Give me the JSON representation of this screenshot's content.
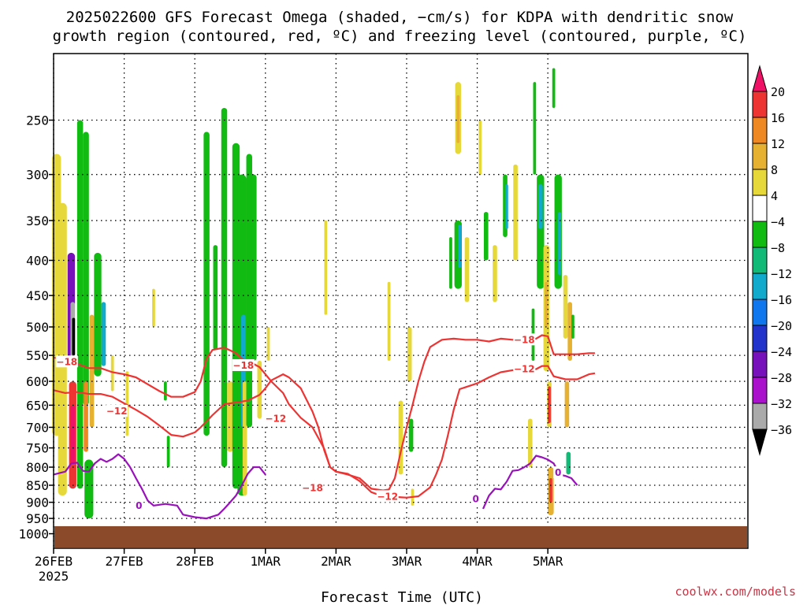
{
  "title_line1": "2025022600 GFS Forecast Omega (shaded, −cm/s) for KDPA with dendritic snow",
  "title_line2": "growth region (contoured, red, ºC) and freezing level (contoured, purple, ºC)",
  "xlabel": "Forecast Time (UTC)",
  "credit": "coolwx.com/models",
  "chart_data": {
    "type": "heatmap",
    "y_axis": {
      "scale": "log-pressure",
      "range_hPa": [
        1050,
        200
      ],
      "ticks": [
        250,
        300,
        350,
        400,
        450,
        500,
        550,
        600,
        650,
        700,
        750,
        800,
        850,
        900,
        950,
        1000
      ]
    },
    "x_axis": {
      "range_hours": [
        0,
        236
      ],
      "ticks": [
        {
          "hour": 0,
          "label": "26FEB",
          "sub": "2025"
        },
        {
          "hour": 24,
          "label": "27FEB"
        },
        {
          "hour": 48,
          "label": "28FEB"
        },
        {
          "hour": 72,
          "label": "1MAR"
        },
        {
          "hour": 96,
          "label": "2MAR"
        },
        {
          "hour": 120,
          "label": "3MAR"
        },
        {
          "hour": 144,
          "label": "4MAR"
        },
        {
          "hour": 168,
          "label": "5MAR"
        }
      ]
    },
    "grid": "dotted",
    "colorbar": {
      "labels": [
        "20",
        "16",
        "12",
        "8",
        "4",
        "−4",
        "−8",
        "−12",
        "−16",
        "−20",
        "−24",
        "−28",
        "−32",
        "−36"
      ],
      "colors": [
        "#ee1166",
        "#ee3333",
        "#ee8822",
        "#e6b030",
        "#e6d83a",
        "#ffffff",
        "#11bb11",
        "#11bb77",
        "#11aacc",
        "#1177ee",
        "#2233cc",
        "#7711bb",
        "#aa11cc",
        "#aaaaaa",
        "#000000"
      ]
    },
    "contour_colors": {
      "dendritic": "#ee3333",
      "freezing": "#9911bb",
      "ground": "#8b4a2a"
    },
    "contours": {
      "minus18_upper": [
        [
          0,
          554
        ],
        [
          4,
          558
        ],
        [
          8,
          566
        ],
        [
          12,
          574
        ],
        [
          16,
          574
        ],
        [
          20,
          582
        ],
        [
          24,
          586
        ],
        [
          28,
          592
        ],
        [
          32,
          606
        ],
        [
          36,
          620
        ],
        [
          40,
          632
        ],
        [
          44,
          632
        ],
        [
          48,
          622
        ],
        [
          50,
          600
        ],
        [
          52,
          556
        ],
        [
          54,
          540
        ],
        [
          58,
          536
        ],
        [
          62,
          546
        ],
        [
          64,
          556
        ],
        [
          68,
          566
        ],
        [
          70,
          572
        ],
        [
          74,
          600
        ],
        [
          78,
          624
        ],
        [
          80,
          648
        ],
        [
          84,
          678
        ],
        [
          88,
          700
        ],
        [
          92,
          752
        ],
        [
          94,
          800
        ],
        [
          96,
          812
        ],
        [
          100,
          820
        ],
        [
          104,
          830
        ],
        [
          108,
          860
        ],
        [
          112,
          865
        ],
        [
          114,
          862
        ],
        [
          116,
          830
        ],
        [
          118,
          760
        ],
        [
          120,
          700
        ],
        [
          122,
          650
        ],
        [
          124,
          600
        ],
        [
          126,
          562
        ],
        [
          128,
          535
        ],
        [
          132,
          522
        ],
        [
          136,
          520
        ],
        [
          140,
          522
        ],
        [
          144,
          522
        ],
        [
          148,
          525
        ],
        [
          152,
          520
        ],
        [
          156,
          522
        ],
        [
          160,
          522
        ],
        [
          164,
          520
        ],
        [
          166,
          514
        ],
        [
          168,
          516
        ],
        [
          170,
          548
        ],
        [
          174,
          548
        ],
        [
          178,
          548
        ],
        [
          182,
          546
        ],
        [
          184,
          546
        ]
      ],
      "minus12_lower": [
        [
          0,
          618
        ],
        [
          4,
          624
        ],
        [
          8,
          622
        ],
        [
          12,
          626
        ],
        [
          16,
          626
        ],
        [
          20,
          632
        ],
        [
          24,
          646
        ],
        [
          28,
          660
        ],
        [
          32,
          676
        ],
        [
          36,
          696
        ],
        [
          40,
          718
        ],
        [
          44,
          722
        ],
        [
          48,
          712
        ],
        [
          50,
          700
        ],
        [
          52,
          686
        ],
        [
          54,
          672
        ],
        [
          58,
          648
        ],
        [
          62,
          644
        ],
        [
          66,
          640
        ],
        [
          70,
          628
        ],
        [
          72,
          614
        ],
        [
          74,
          598
        ],
        [
          78,
          586
        ],
        [
          80,
          592
        ],
        [
          84,
          614
        ],
        [
          88,
          664
        ],
        [
          90,
          700
        ],
        [
          92,
          756
        ],
        [
          94,
          800
        ],
        [
          96,
          812
        ],
        [
          100,
          818
        ],
        [
          104,
          838
        ],
        [
          108,
          870
        ],
        [
          112,
          882
        ],
        [
          116,
          884
        ],
        [
          120,
          886
        ],
        [
          124,
          882
        ],
        [
          128,
          856
        ],
        [
          130,
          820
        ],
        [
          132,
          780
        ],
        [
          134,
          720
        ],
        [
          136,
          660
        ],
        [
          138,
          616
        ],
        [
          140,
          612
        ],
        [
          144,
          604
        ],
        [
          148,
          592
        ],
        [
          152,
          582
        ],
        [
          156,
          578
        ],
        [
          160,
          574
        ],
        [
          164,
          576
        ],
        [
          166,
          570
        ],
        [
          168,
          570
        ],
        [
          170,
          590
        ],
        [
          174,
          596
        ],
        [
          178,
          596
        ],
        [
          182,
          586
        ],
        [
          184,
          584
        ]
      ],
      "freezing_left": [
        [
          0,
          820
        ],
        [
          4,
          812
        ],
        [
          6,
          790
        ],
        [
          8,
          788
        ],
        [
          10,
          810
        ],
        [
          12,
          812
        ],
        [
          14,
          790
        ],
        [
          16,
          778
        ],
        [
          18,
          786
        ],
        [
          20,
          778
        ],
        [
          22,
          766
        ],
        [
          24,
          778
        ],
        [
          26,
          800
        ],
        [
          28,
          830
        ],
        [
          30,
          860
        ],
        [
          32,
          895
        ],
        [
          34,
          910
        ],
        [
          38,
          905
        ],
        [
          42,
          910
        ],
        [
          44,
          938
        ],
        [
          48,
          946
        ],
        [
          52,
          950
        ],
        [
          56,
          938
        ],
        [
          58,
          920
        ],
        [
          60,
          900
        ],
        [
          62,
          880
        ],
        [
          64,
          850
        ],
        [
          66,
          818
        ],
        [
          68,
          800
        ],
        [
          70,
          800
        ],
        [
          72,
          820
        ]
      ],
      "freezing_right": [
        [
          146,
          920
        ],
        [
          148,
          880
        ],
        [
          150,
          860
        ],
        [
          152,
          862
        ],
        [
          154,
          840
        ],
        [
          156,
          810
        ],
        [
          158,
          808
        ],
        [
          160,
          800
        ],
        [
          162,
          790
        ],
        [
          164,
          770
        ],
        [
          166,
          774
        ],
        [
          168,
          780
        ],
        [
          170,
          790
        ],
        [
          172,
          820
        ],
        [
          174,
          824
        ],
        [
          176,
          830
        ],
        [
          178,
          850
        ]
      ]
    },
    "contour_labels": [
      {
        "text": "−18",
        "hour": 4.5,
        "p": 562,
        "kind": "dendritic"
      },
      {
        "text": "−12",
        "hour": 21.5,
        "p": 663,
        "kind": "dendritic"
      },
      {
        "text": "−18",
        "hour": 64.5,
        "p": 569,
        "kind": "dendritic"
      },
      {
        "text": "−12",
        "hour": 75.5,
        "p": 680,
        "kind": "dendritic"
      },
      {
        "text": "−18",
        "hour": 88,
        "p": 858,
        "kind": "dendritic"
      },
      {
        "text": "−12",
        "hour": 113.5,
        "p": 883,
        "kind": "dendritic"
      },
      {
        "text": "−18",
        "hour": 160,
        "p": 522,
        "kind": "dendritic"
      },
      {
        "text": "−12",
        "hour": 160,
        "p": 576,
        "kind": "dendritic"
      },
      {
        "text": "0",
        "hour": 29,
        "p": 910,
        "kind": "freezing"
      },
      {
        "text": "0",
        "hour": 143.5,
        "p": 890,
        "kind": "freezing"
      },
      {
        "text": "0",
        "hour": 171.5,
        "p": 815,
        "kind": "freezing"
      }
    ],
    "shaded_regions": [
      {
        "hour": 1,
        "p_top": 280,
        "p_bot": 720,
        "w": 3,
        "color": "#e6d83a"
      },
      {
        "hour": 3,
        "p_top": 330,
        "p_bot": 880,
        "w": 3,
        "color": "#e6d83a"
      },
      {
        "hour": 6,
        "p_top": 390,
        "p_bot": 560,
        "w": 2.5,
        "color": "#7711bb"
      },
      {
        "hour": 6.5,
        "p_top": 460,
        "p_bot": 560,
        "w": 1.5,
        "color": "#aaaaaa"
      },
      {
        "hour": 6.8,
        "p_top": 485,
        "p_bot": 550,
        "w": 1,
        "color": "#000000"
      },
      {
        "hour": 6.5,
        "p_top": 600,
        "p_bot": 860,
        "w": 2.5,
        "color": "#ee3333"
      },
      {
        "hour": 6.5,
        "p_top": 650,
        "p_bot": 790,
        "w": 1.5,
        "color": "#ee1166"
      },
      {
        "hour": 9,
        "p_top": 250,
        "p_bot": 860,
        "w": 2,
        "color": "#11bb11"
      },
      {
        "hour": 11,
        "p_top": 260,
        "p_bot": 650,
        "w": 2,
        "color": "#11bb11"
      },
      {
        "hour": 11,
        "p_top": 600,
        "p_bot": 760,
        "w": 1.5,
        "color": "#ee8822"
      },
      {
        "hour": 13,
        "p_top": 480,
        "p_bot": 700,
        "w": 1.5,
        "color": "#e6b030"
      },
      {
        "hour": 15,
        "p_top": 390,
        "p_bot": 590,
        "w": 2.5,
        "color": "#11bb11"
      },
      {
        "hour": 17,
        "p_top": 460,
        "p_bot": 570,
        "w": 1.5,
        "color": "#11aacc"
      },
      {
        "hour": 12,
        "p_top": 780,
        "p_bot": 950,
        "w": 3,
        "color": "#11bb11"
      },
      {
        "hour": 20,
        "p_top": 550,
        "p_bot": 620,
        "w": 1,
        "color": "#e6d83a"
      },
      {
        "hour": 25,
        "p_top": 580,
        "p_bot": 720,
        "w": 1,
        "color": "#e6d83a"
      },
      {
        "hour": 34,
        "p_top": 440,
        "p_bot": 500,
        "w": 1,
        "color": "#e6d83a"
      },
      {
        "hour": 38,
        "p_top": 600,
        "p_bot": 640,
        "w": 1,
        "color": "#11bb11"
      },
      {
        "hour": 39,
        "p_top": 720,
        "p_bot": 800,
        "w": 1,
        "color": "#11bb11"
      },
      {
        "hour": 52,
        "p_top": 260,
        "p_bot": 720,
        "w": 2,
        "color": "#11bb11"
      },
      {
        "hour": 55,
        "p_top": 380,
        "p_bot": 540,
        "w": 1.5,
        "color": "#11bb11"
      },
      {
        "hour": 58,
        "p_top": 240,
        "p_bot": 800,
        "w": 2,
        "color": "#11bb11"
      },
      {
        "hour": 60,
        "p_top": 600,
        "p_bot": 760,
        "w": 2,
        "color": "#e6d83a"
      },
      {
        "hour": 62,
        "p_top": 270,
        "p_bot": 860,
        "w": 2.5,
        "color": "#11bb11"
      },
      {
        "hour": 64,
        "p_top": 300,
        "p_bot": 880,
        "w": 3,
        "color": "#11bb11"
      },
      {
        "hour": 64.5,
        "p_top": 480,
        "p_bot": 700,
        "w": 1.5,
        "color": "#11aacc"
      },
      {
        "hour": 65,
        "p_top": 600,
        "p_bot": 880,
        "w": 1.5,
        "color": "#e6d83a"
      },
      {
        "hour": 66.5,
        "p_top": 280,
        "p_bot": 700,
        "w": 2,
        "color": "#11bb11"
      },
      {
        "hour": 68,
        "p_top": 300,
        "p_bot": 560,
        "w": 2,
        "color": "#11bb11"
      },
      {
        "hour": 70,
        "p_top": 560,
        "p_bot": 680,
        "w": 1.5,
        "color": "#e6d83a"
      },
      {
        "hour": 73,
        "p_top": 500,
        "p_bot": 560,
        "w": 1,
        "color": "#e6d83a"
      },
      {
        "hour": 92.5,
        "p_top": 350,
        "p_bot": 480,
        "w": 1,
        "color": "#e6d83a"
      },
      {
        "hour": 114,
        "p_top": 430,
        "p_bot": 560,
        "w": 1,
        "color": "#e6d83a"
      },
      {
        "hour": 118,
        "p_top": 640,
        "p_bot": 820,
        "w": 1.5,
        "color": "#e6d83a"
      },
      {
        "hour": 121,
        "p_top": 500,
        "p_bot": 600,
        "w": 1.5,
        "color": "#e6d83a"
      },
      {
        "hour": 121.5,
        "p_top": 680,
        "p_bot": 760,
        "w": 1.5,
        "color": "#11bb11"
      },
      {
        "hour": 122,
        "p_top": 860,
        "p_bot": 910,
        "w": 1,
        "color": "#e6d83a"
      },
      {
        "hour": 135,
        "p_top": 370,
        "p_bot": 440,
        "w": 1,
        "color": "#11bb11"
      },
      {
        "hour": 137.5,
        "p_top": 220,
        "p_bot": 280,
        "w": 2,
        "color": "#e6d83a"
      },
      {
        "hour": 137.5,
        "p_top": 230,
        "p_bot": 270,
        "w": 1,
        "color": "#e6b030"
      },
      {
        "hour": 137.5,
        "p_top": 350,
        "p_bot": 440,
        "w": 2.5,
        "color": "#11bb11"
      },
      {
        "hour": 138,
        "p_top": 355,
        "p_bot": 410,
        "w": 1,
        "color": "#11aacc"
      },
      {
        "hour": 140.5,
        "p_top": 370,
        "p_bot": 460,
        "w": 1.5,
        "color": "#e6d83a"
      },
      {
        "hour": 145,
        "p_top": 250,
        "p_bot": 300,
        "w": 1,
        "color": "#e6d83a"
      },
      {
        "hour": 147,
        "p_top": 340,
        "p_bot": 400,
        "w": 1.5,
        "color": "#11bb11"
      },
      {
        "hour": 150,
        "p_top": 380,
        "p_bot": 460,
        "w": 1.5,
        "color": "#e6d83a"
      },
      {
        "hour": 153.5,
        "p_top": 300,
        "p_bot": 370,
        "w": 1.5,
        "color": "#11bb11"
      },
      {
        "hour": 154,
        "p_top": 310,
        "p_bot": 360,
        "w": 1,
        "color": "#11aacc"
      },
      {
        "hour": 157,
        "p_top": 290,
        "p_bot": 400,
        "w": 1.5,
        "color": "#e6d83a"
      },
      {
        "hour": 163,
        "p_top": 470,
        "p_bot": 560,
        "w": 1,
        "color": "#11bb11"
      },
      {
        "hour": 162,
        "p_top": 680,
        "p_bot": 800,
        "w": 1.5,
        "color": "#e6d83a"
      },
      {
        "hour": 163.5,
        "p_top": 220,
        "p_bot": 300,
        "w": 1,
        "color": "#11bb11"
      },
      {
        "hour": 165.5,
        "p_top": 300,
        "p_bot": 440,
        "w": 2.5,
        "color": "#11bb11"
      },
      {
        "hour": 165.5,
        "p_top": 310,
        "p_bot": 360,
        "w": 1.5,
        "color": "#11aacc"
      },
      {
        "hour": 167.5,
        "p_top": 380,
        "p_bot": 580,
        "w": 2,
        "color": "#e6d83a"
      },
      {
        "hour": 167.5,
        "p_top": 430,
        "p_bot": 500,
        "w": 1,
        "color": "#e6b030"
      },
      {
        "hour": 168.5,
        "p_top": 600,
        "p_bot": 700,
        "w": 1.5,
        "color": "#e6d83a"
      },
      {
        "hour": 168.5,
        "p_top": 610,
        "p_bot": 690,
        "w": 1,
        "color": "#ee3333"
      },
      {
        "hour": 169,
        "p_top": 800,
        "p_bot": 940,
        "w": 2,
        "color": "#e6b030"
      },
      {
        "hour": 169,
        "p_top": 830,
        "p_bot": 900,
        "w": 1,
        "color": "#ee3333"
      },
      {
        "hour": 170,
        "p_top": 210,
        "p_bot": 240,
        "w": 1,
        "color": "#11bb11"
      },
      {
        "hour": 171.5,
        "p_top": 300,
        "p_bot": 440,
        "w": 2.5,
        "color": "#11bb11"
      },
      {
        "hour": 172,
        "p_top": 340,
        "p_bot": 420,
        "w": 1,
        "color": "#11aacc"
      },
      {
        "hour": 174,
        "p_top": 420,
        "p_bot": 520,
        "w": 1.5,
        "color": "#e6d83a"
      },
      {
        "hour": 174.5,
        "p_top": 600,
        "p_bot": 700,
        "w": 1.5,
        "color": "#e6b030"
      },
      {
        "hour": 175,
        "p_top": 760,
        "p_bot": 820,
        "w": 1.5,
        "color": "#11bb77"
      },
      {
        "hour": 175.5,
        "p_top": 460,
        "p_bot": 560,
        "w": 1.5,
        "color": "#e6b030"
      },
      {
        "hour": 176.5,
        "p_top": 480,
        "p_bot": 520,
        "w": 1,
        "color": "#11bb11"
      }
    ]
  }
}
